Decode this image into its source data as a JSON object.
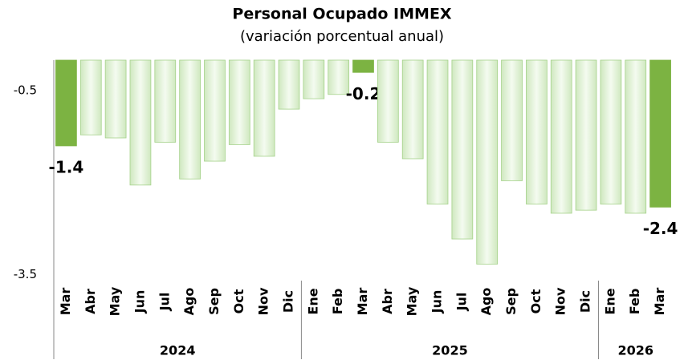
{
  "chart_data": {
    "type": "bar",
    "title": "Personal Ocupado IMMEX",
    "subtitle": "(variación porcentual anual)",
    "categories": [
      "Mar",
      "Abr",
      "May",
      "Jun",
      "Jul",
      "Ago",
      "Sep",
      "Oct",
      "Nov",
      "Dic",
      "Ene",
      "Feb",
      "Mar",
      "Abr",
      "May",
      "Jun",
      "Jul",
      "Ago",
      "Sep",
      "Oct",
      "Nov",
      "Dic",
      "Ene",
      "Feb",
      "Mar"
    ],
    "values": [
      -1.4,
      -1.22,
      -1.27,
      -2.04,
      -1.34,
      -1.94,
      -1.65,
      -1.38,
      -1.57,
      -0.8,
      -0.63,
      -0.56,
      -0.2,
      -1.34,
      -1.61,
      -2.35,
      -2.92,
      -3.33,
      -1.97,
      -2.35,
      -2.5,
      -2.45,
      -2.35,
      -2.5,
      -2.4
    ],
    "value_labels": [
      "-1.4",
      null,
      null,
      null,
      null,
      null,
      null,
      null,
      null,
      null,
      null,
      null,
      "-0.2",
      null,
      null,
      null,
      null,
      null,
      null,
      null,
      null,
      null,
      null,
      null,
      "-2.4"
    ],
    "groups": [
      {
        "label": "2024",
        "count": 10
      },
      {
        "label": "2025",
        "count": 12
      },
      {
        "label": "2026",
        "count": 3
      }
    ],
    "color": "#dcefd0",
    "highlight_color": "#7cb342",
    "ylim": [
      -3.6,
      0
    ],
    "yticks": [
      -0.5,
      -3.5
    ]
  }
}
